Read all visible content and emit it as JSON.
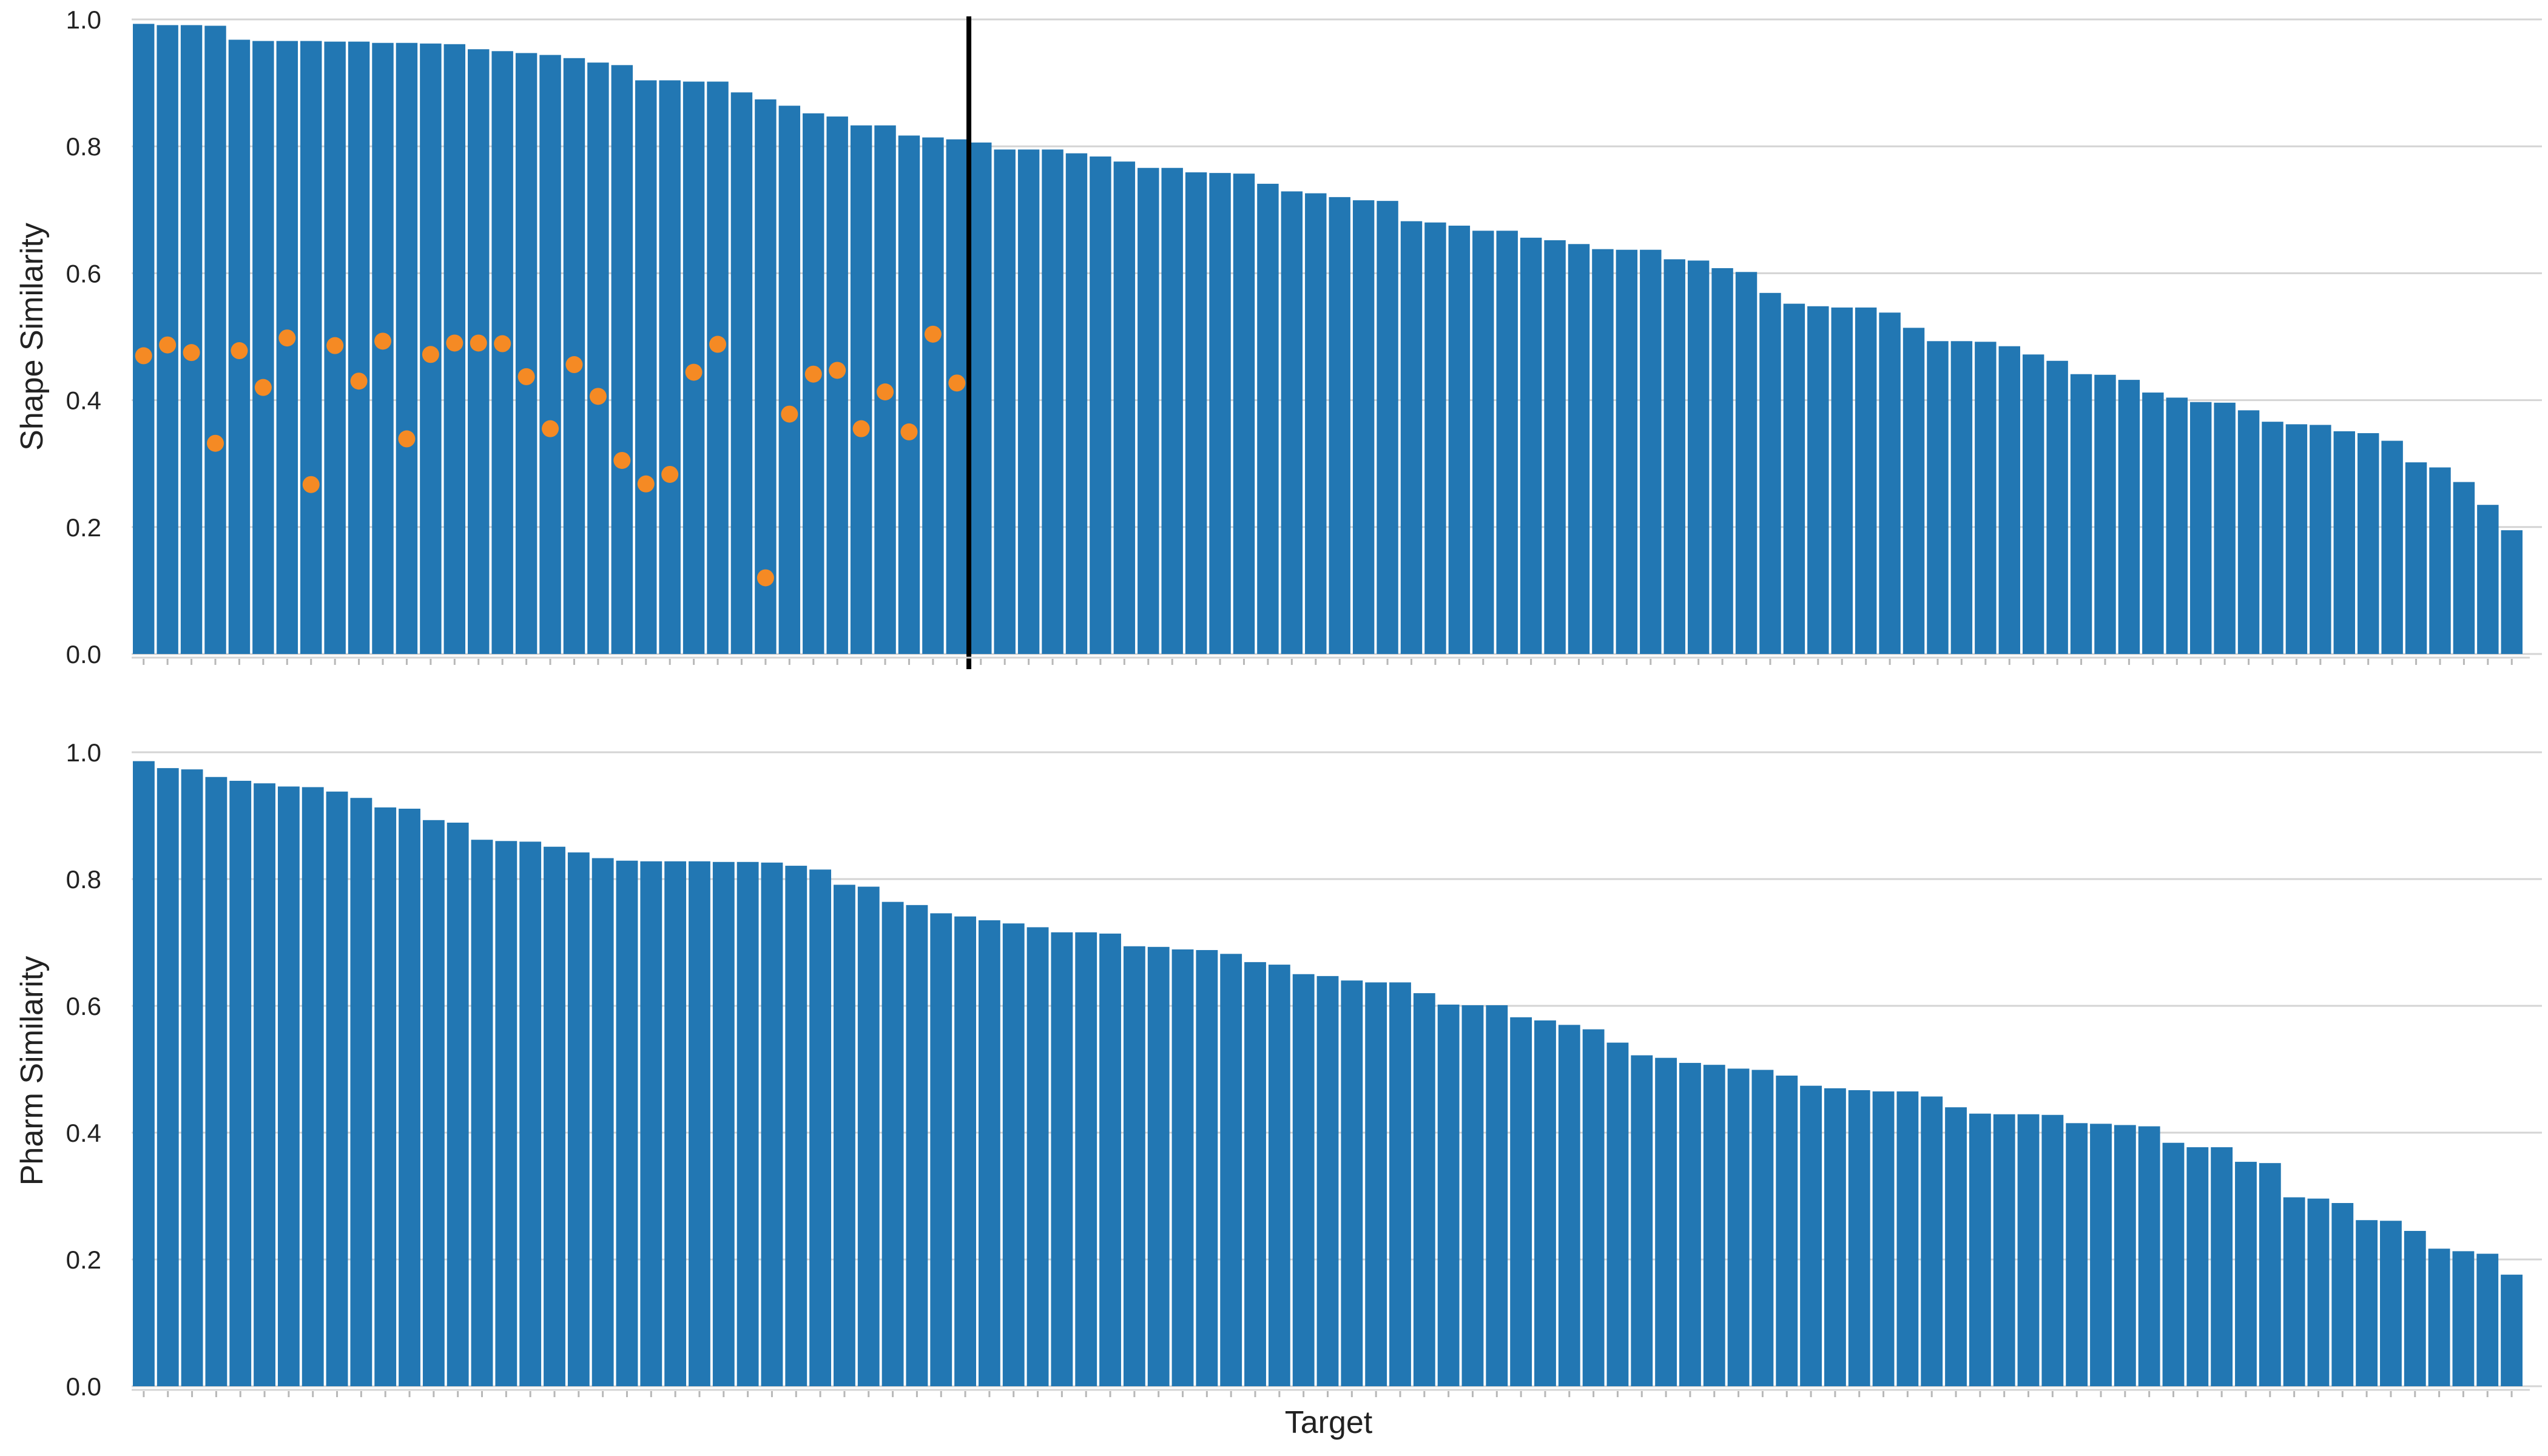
{
  "colors": {
    "bar": "#2277b3",
    "marker": "#f58a24",
    "grid": "#d4d4d4",
    "vline": "#000000",
    "text": "#222222"
  },
  "chart_data": [
    {
      "type": "bar",
      "ylabel": "Shape Similarity",
      "xlabel": "",
      "ylim": [
        0,
        1
      ],
      "yticks": [
        "0.0",
        "0.2",
        "0.4",
        "0.6",
        "0.8",
        "1.0"
      ],
      "grid": true,
      "x_tick_labels": false,
      "values": [
        0.993,
        0.991,
        0.991,
        0.99,
        0.968,
        0.966,
        0.966,
        0.966,
        0.965,
        0.965,
        0.963,
        0.963,
        0.962,
        0.961,
        0.953,
        0.95,
        0.947,
        0.944,
        0.939,
        0.932,
        0.928,
        0.904,
        0.904,
        0.902,
        0.902,
        0.885,
        0.874,
        0.864,
        0.852,
        0.847,
        0.833,
        0.833,
        0.817,
        0.814,
        0.811,
        0.806,
        0.795,
        0.795,
        0.795,
        0.789,
        0.784,
        0.776,
        0.766,
        0.766,
        0.759,
        0.758,
        0.757,
        0.741,
        0.729,
        0.726,
        0.72,
        0.715,
        0.714,
        0.682,
        0.68,
        0.675,
        0.667,
        0.667,
        0.656,
        0.652,
        0.646,
        0.638,
        0.637,
        0.637,
        0.622,
        0.62,
        0.608,
        0.602,
        0.569,
        0.552,
        0.548,
        0.546,
        0.546,
        0.538,
        0.514,
        0.493,
        0.493,
        0.492,
        0.485,
        0.472,
        0.462,
        0.441,
        0.44,
        0.432,
        0.412,
        0.404,
        0.397,
        0.396,
        0.384,
        0.366,
        0.362,
        0.361,
        0.351,
        0.348,
        0.336,
        0.302,
        0.294,
        0.271,
        0.235,
        0.195
      ],
      "scatter_points": [
        {
          "index": 0,
          "value": 0.47
        },
        {
          "index": 1,
          "value": 0.487
        },
        {
          "index": 2,
          "value": 0.475
        },
        {
          "index": 3,
          "value": 0.332
        },
        {
          "index": 4,
          "value": 0.478
        },
        {
          "index": 5,
          "value": 0.42
        },
        {
          "index": 6,
          "value": 0.498
        },
        {
          "index": 7,
          "value": 0.267
        },
        {
          "index": 8,
          "value": 0.486
        },
        {
          "index": 9,
          "value": 0.43
        },
        {
          "index": 10,
          "value": 0.493
        },
        {
          "index": 11,
          "value": 0.339
        },
        {
          "index": 12,
          "value": 0.472
        },
        {
          "index": 13,
          "value": 0.49
        },
        {
          "index": 14,
          "value": 0.49
        },
        {
          "index": 15,
          "value": 0.489
        },
        {
          "index": 16,
          "value": 0.437
        },
        {
          "index": 17,
          "value": 0.355
        },
        {
          "index": 18,
          "value": 0.456
        },
        {
          "index": 19,
          "value": 0.406
        },
        {
          "index": 20,
          "value": 0.305
        },
        {
          "index": 21,
          "value": 0.268
        },
        {
          "index": 22,
          "value": 0.283
        },
        {
          "index": 23,
          "value": 0.444
        },
        {
          "index": 24,
          "value": 0.488
        },
        {
          "index": 26,
          "value": 0.12
        },
        {
          "index": 27,
          "value": 0.378
        },
        {
          "index": 28,
          "value": 0.441
        },
        {
          "index": 29,
          "value": 0.447
        },
        {
          "index": 30,
          "value": 0.355
        },
        {
          "index": 31,
          "value": 0.413
        },
        {
          "index": 32,
          "value": 0.35
        },
        {
          "index": 33,
          "value": 0.504
        },
        {
          "index": 34,
          "value": 0.427
        }
      ],
      "vertical_line_after_index": 34
    },
    {
      "type": "bar",
      "ylabel": "Pharm Similarity",
      "xlabel": "Target",
      "ylim": [
        0,
        1
      ],
      "yticks": [
        "0.0",
        "0.2",
        "0.4",
        "0.6",
        "0.8",
        "1.0"
      ],
      "grid": true,
      "x_tick_labels": false,
      "values": [
        0.986,
        0.975,
        0.973,
        0.961,
        0.955,
        0.951,
        0.946,
        0.945,
        0.938,
        0.928,
        0.913,
        0.911,
        0.893,
        0.889,
        0.862,
        0.86,
        0.859,
        0.851,
        0.842,
        0.833,
        0.829,
        0.828,
        0.828,
        0.828,
        0.827,
        0.827,
        0.826,
        0.821,
        0.815,
        0.791,
        0.788,
        0.764,
        0.759,
        0.746,
        0.741,
        0.735,
        0.73,
        0.724,
        0.716,
        0.716,
        0.714,
        0.694,
        0.693,
        0.689,
        0.688,
        0.682,
        0.669,
        0.665,
        0.65,
        0.647,
        0.64,
        0.637,
        0.637,
        0.62,
        0.602,
        0.601,
        0.601,
        0.582,
        0.577,
        0.57,
        0.563,
        0.542,
        0.522,
        0.518,
        0.51,
        0.507,
        0.501,
        0.499,
        0.49,
        0.474,
        0.47,
        0.467,
        0.465,
        0.465,
        0.457,
        0.44,
        0.43,
        0.429,
        0.429,
        0.428,
        0.415,
        0.414,
        0.412,
        0.41,
        0.384,
        0.377,
        0.377,
        0.354,
        0.352,
        0.298,
        0.296,
        0.289,
        0.262,
        0.261,
        0.245,
        0.217,
        0.213,
        0.209,
        0.176
      ]
    }
  ]
}
